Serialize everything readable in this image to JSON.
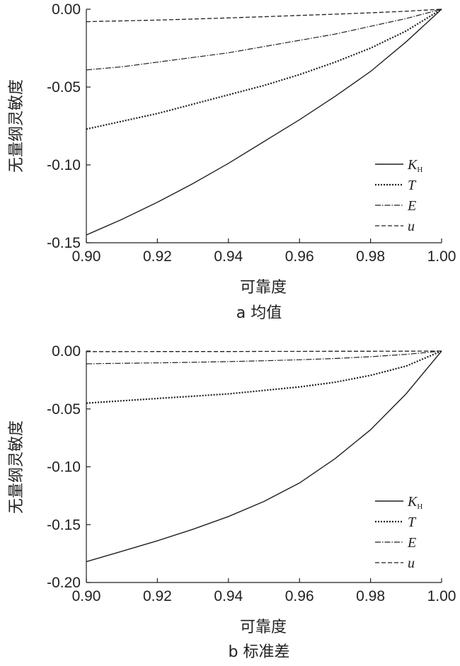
{
  "chart_data": [
    {
      "type": "line",
      "caption": "a 均值",
      "xlabel": "可靠度",
      "ylabel": "无量纲灵敏度",
      "xlim": [
        0.9,
        1.0
      ],
      "ylim": [
        -0.15,
        0.0
      ],
      "x_ticks": [
        "0.90",
        "0.92",
        "0.94",
        "0.96",
        "0.98",
        "1.00"
      ],
      "y_ticks": [
        "0.00",
        "-0.05",
        "-0.10",
        "-0.15"
      ],
      "grid": false,
      "legend_position": "right",
      "x": [
        0.9,
        0.91,
        0.92,
        0.93,
        0.94,
        0.95,
        0.96,
        0.97,
        0.98,
        0.99,
        1.0
      ],
      "series": [
        {
          "name": "K",
          "subscript": "H",
          "style": "solid",
          "values": [
            -0.145,
            -0.135,
            -0.124,
            -0.112,
            -0.099,
            -0.085,
            -0.071,
            -0.056,
            -0.04,
            -0.021,
            0.0
          ]
        },
        {
          "name": "T",
          "subscript": "",
          "style": "dotted",
          "values": [
            -0.077,
            -0.072,
            -0.067,
            -0.061,
            -0.055,
            -0.049,
            -0.042,
            -0.034,
            -0.025,
            -0.014,
            0.0
          ]
        },
        {
          "name": "E",
          "subscript": "",
          "style": "dashdot",
          "values": [
            -0.039,
            -0.037,
            -0.034,
            -0.031,
            -0.028,
            -0.024,
            -0.02,
            -0.016,
            -0.011,
            -0.006,
            0.0
          ]
        },
        {
          "name": "u",
          "subscript": "",
          "style": "dashed",
          "values": [
            -0.008,
            -0.0075,
            -0.007,
            -0.0063,
            -0.0056,
            -0.0048,
            -0.004,
            -0.0032,
            -0.0023,
            -0.0013,
            0.0
          ]
        }
      ]
    },
    {
      "type": "line",
      "caption": "b 标准差",
      "xlabel": "可靠度",
      "ylabel": "无量纲灵敏度",
      "xlim": [
        0.9,
        1.0
      ],
      "ylim": [
        -0.2,
        0.0
      ],
      "x_ticks": [
        "0.90",
        "0.92",
        "0.94",
        "0.96",
        "0.98",
        "1.00"
      ],
      "y_ticks": [
        "0.00",
        "-0.05",
        "-0.10",
        "-0.15",
        "-0.20"
      ],
      "grid": false,
      "legend_position": "right",
      "x": [
        0.9,
        0.91,
        0.92,
        0.93,
        0.94,
        0.95,
        0.96,
        0.97,
        0.98,
        0.99,
        1.0
      ],
      "series": [
        {
          "name": "K",
          "subscript": "H",
          "style": "solid",
          "values": [
            -0.182,
            -0.173,
            -0.164,
            -0.154,
            -0.143,
            -0.13,
            -0.114,
            -0.093,
            -0.068,
            -0.037,
            0.0
          ]
        },
        {
          "name": "T",
          "subscript": "",
          "style": "dotted",
          "values": [
            -0.045,
            -0.043,
            -0.041,
            -0.039,
            -0.037,
            -0.034,
            -0.031,
            -0.027,
            -0.021,
            -0.013,
            0.0
          ]
        },
        {
          "name": "E",
          "subscript": "",
          "style": "dashdot",
          "values": [
            -0.011,
            -0.0106,
            -0.0102,
            -0.0097,
            -0.0091,
            -0.0084,
            -0.0075,
            -0.0064,
            -0.0049,
            -0.0029,
            0.0
          ]
        },
        {
          "name": "u",
          "subscript": "",
          "style": "dashed",
          "values": [
            -0.0005,
            -0.0005,
            -0.0004,
            -0.0004,
            -0.0004,
            -0.0003,
            -0.0003,
            -0.0002,
            -0.0002,
            -0.0001,
            0.0
          ]
        }
      ]
    }
  ]
}
